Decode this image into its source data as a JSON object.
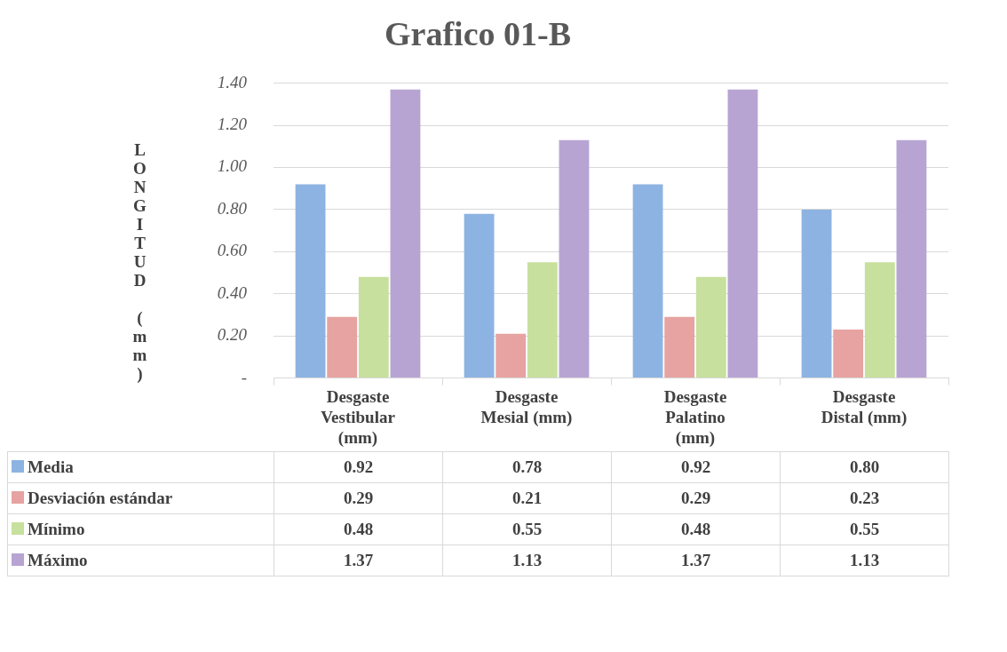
{
  "chart_data": {
    "type": "bar",
    "title": "Grafico 01-B",
    "ylabel": "LONGITUD (mm)",
    "categories": [
      "Desgaste Vestibular (mm)",
      "Desgaste Mesial (mm)",
      "Desgaste Palatino (mm)",
      "Desgaste Distal (mm)"
    ],
    "series": [
      {
        "name": "Media",
        "color": "#8db3e2",
        "values": [
          0.92,
          0.78,
          0.92,
          0.8
        ],
        "value_labels": [
          "0.92",
          "0.78",
          "0.92",
          "0.80"
        ]
      },
      {
        "name": "Desviación estándar",
        "color": "#e6a3a1",
        "values": [
          0.29,
          0.21,
          0.29,
          0.23
        ],
        "value_labels": [
          "0.29",
          "0.21",
          "0.29",
          "0.23"
        ]
      },
      {
        "name": "Mínimo",
        "color": "#c7e09d",
        "values": [
          0.48,
          0.55,
          0.48,
          0.55
        ],
        "value_labels": [
          "0.48",
          "0.55",
          "0.48",
          "0.55"
        ]
      },
      {
        "name": "Máximo",
        "color": "#b7a4d3",
        "values": [
          1.37,
          1.13,
          1.37,
          1.13
        ],
        "value_labels": [
          "1.37",
          "1.13",
          "1.37",
          "1.13"
        ]
      }
    ],
    "ylim": [
      0,
      1.4
    ],
    "yticks": [
      {
        "value": 0,
        "label": "-"
      },
      {
        "value": 0.2,
        "label": "0.20"
      },
      {
        "value": 0.4,
        "label": "0.40"
      },
      {
        "value": 0.6,
        "label": "0.60"
      },
      {
        "value": 0.8,
        "label": "0.80"
      },
      {
        "value": 1,
        "label": "1.00"
      },
      {
        "value": 1.2,
        "label": "1.20"
      },
      {
        "value": 1.4,
        "label": "1.40"
      }
    ],
    "grid": "y",
    "legend": "bottom"
  }
}
